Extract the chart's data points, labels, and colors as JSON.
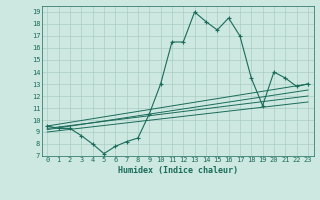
{
  "title": "",
  "xlabel": "Humidex (Indice chaleur)",
  "xlim": [
    -0.5,
    23.5
  ],
  "ylim": [
    7,
    19.5
  ],
  "yticks": [
    7,
    8,
    9,
    10,
    11,
    12,
    13,
    14,
    15,
    16,
    17,
    18,
    19
  ],
  "xticks": [
    0,
    1,
    2,
    3,
    4,
    5,
    6,
    7,
    8,
    9,
    10,
    11,
    12,
    13,
    14,
    15,
    16,
    17,
    18,
    19,
    20,
    21,
    22,
    23
  ],
  "bg_color": "#cce8e0",
  "grid_color": "#aaccC4",
  "line_color": "#1a6b5a",
  "main_x": [
    0,
    1,
    2,
    3,
    4,
    5,
    6,
    7,
    8,
    9,
    10,
    11,
    12,
    13,
    14,
    15,
    16,
    17,
    18,
    19,
    20,
    21,
    22,
    23
  ],
  "main_y": [
    9.5,
    9.3,
    9.3,
    8.7,
    8.0,
    7.2,
    7.8,
    8.2,
    8.5,
    10.5,
    13.0,
    16.5,
    16.5,
    19.0,
    18.2,
    17.5,
    18.5,
    17.0,
    13.5,
    11.2,
    14.0,
    13.5,
    12.8,
    13.0
  ],
  "reg_lines": [
    {
      "x": [
        0,
        23
      ],
      "y": [
        9.5,
        13.0
      ]
    },
    {
      "x": [
        0,
        23
      ],
      "y": [
        9.2,
        12.5
      ]
    },
    {
      "x": [
        0,
        23
      ],
      "y": [
        9.0,
        11.5
      ]
    },
    {
      "x": [
        0,
        23
      ],
      "y": [
        9.3,
        12.0
      ]
    }
  ]
}
